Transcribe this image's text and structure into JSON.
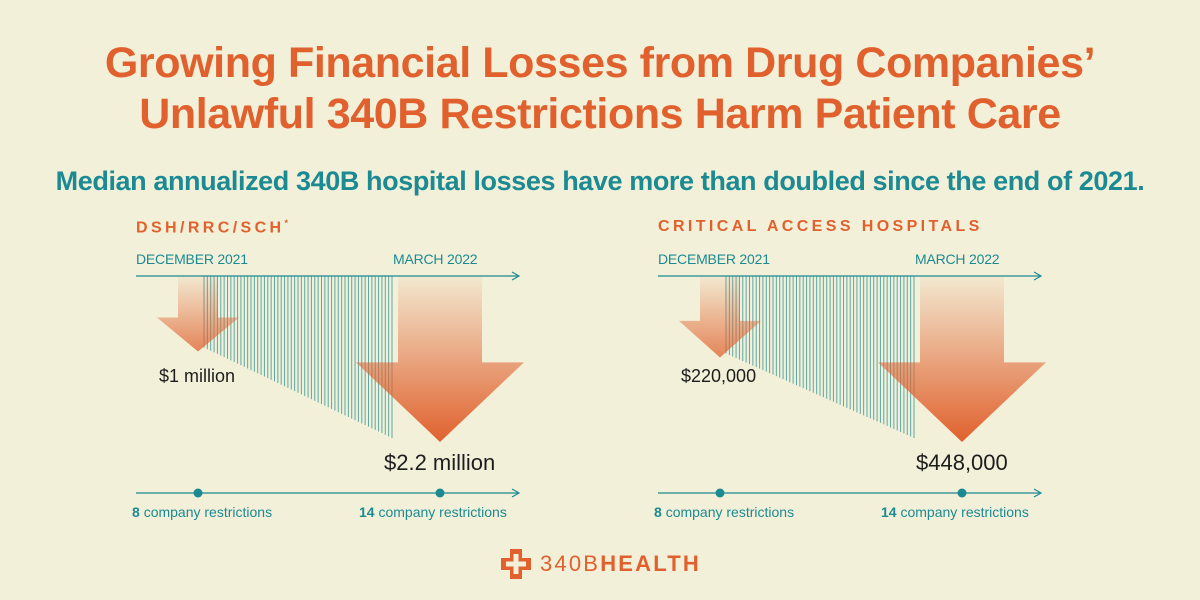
{
  "title": {
    "line1": "Growing Financial Losses from Drug Companies’",
    "line2": "Unlawful 340B Restrictions Harm Patient Care"
  },
  "subtitle": "Median annualized 340B hospital losses have more than doubled since the end of 2021.",
  "colors": {
    "orange": "#e0612e",
    "teal": "#1b8a93",
    "background": "#f3f0d9"
  },
  "chart_data": [
    {
      "type": "bar",
      "title": "DSH/RRC/SCH",
      "title_mark": "*",
      "categories": [
        "DECEMBER 2021",
        "MARCH 2022"
      ],
      "values": [
        1000000,
        2200000
      ],
      "value_labels": [
        "$1 million",
        "$2.2 million"
      ],
      "restrictions": [
        8,
        14
      ],
      "restriction_label": "company restrictions"
    },
    {
      "type": "bar",
      "title": "CRITICAL ACCESS HOSPITALS",
      "categories": [
        "DECEMBER 2021",
        "MARCH 2022"
      ],
      "values": [
        220000,
        448000
      ],
      "value_labels": [
        "$220,000",
        "$448,000"
      ],
      "restrictions": [
        8,
        14
      ],
      "restriction_label": "company restrictions"
    }
  ],
  "logo": {
    "text_light": "340B",
    "text_bold": "HEALTH",
    "icon": "plus-cross-icon"
  }
}
